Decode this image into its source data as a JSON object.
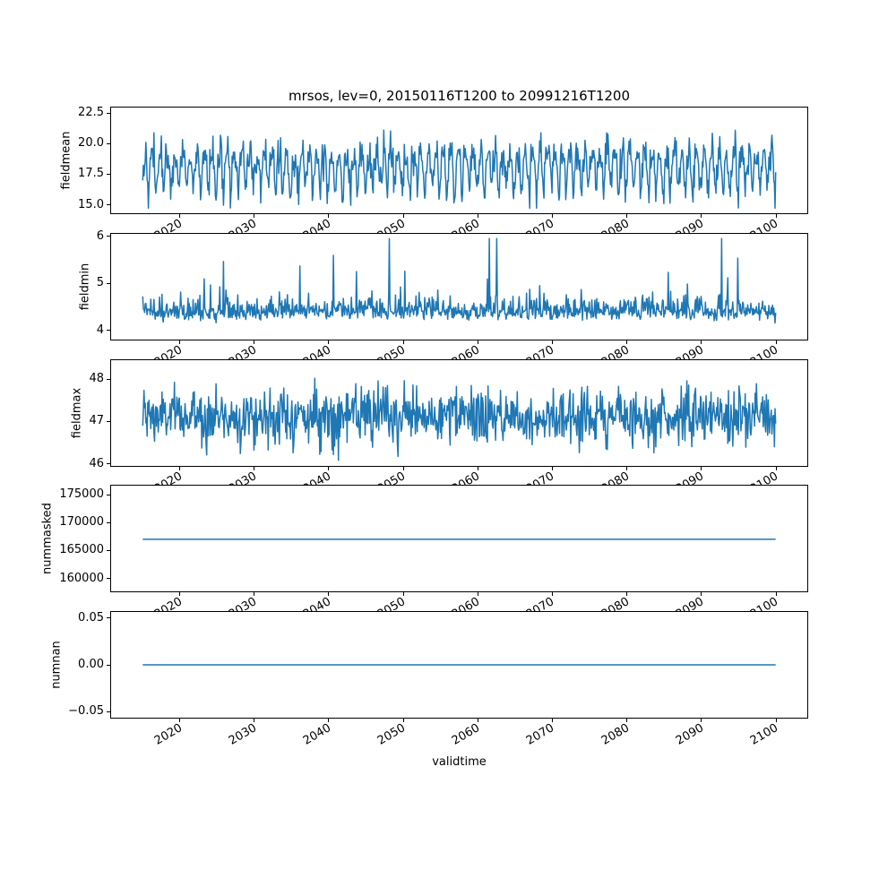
{
  "title": "mrsos, lev=0, 20150116T1200 to 20991216T1200",
  "xlabel": "validtime",
  "chart_data": {
    "type": "line",
    "title": "mrsos, lev=0, 20150116T1200 to 20991216T1200",
    "xlabel": "validtime",
    "grid": false,
    "legend": "none",
    "line_color": "#1f77b4",
    "spine_color": "#000000",
    "background_color": "#ffffff",
    "x": {
      "label": "validtime",
      "start_label": "20150116T1200",
      "end_label": "20991216T1200",
      "start": 2015.043,
      "end": 2099.958,
      "cadence": "monthly",
      "n": 1020,
      "ticks": [
        2020,
        2030,
        2040,
        2050,
        2060,
        2070,
        2080,
        2090,
        2100
      ],
      "tick_labels": [
        "2020",
        "2030",
        "2040",
        "2050",
        "2060",
        "2070",
        "2080",
        "2090",
        "2100"
      ],
      "tick_rotation_deg": 30,
      "lim": [
        2010.797,
        2104.204
      ]
    },
    "subplots": [
      {
        "ylabel": "fieldmean",
        "yticks": [
          "15.0",
          "17.5",
          "20.0",
          "22.5"
        ],
        "ytick_values": [
          15.0,
          17.5,
          20.0,
          22.5
        ],
        "ylim": [
          14.31,
          22.94
        ],
        "series": {
          "kind": "seasonal",
          "seed": 42,
          "base": 18.0,
          "amp": 1.4,
          "phase": -0.5,
          "amp2": 0.45,
          "phase2": 1.0,
          "noise": 0.75,
          "clip": [
            14.72,
            22.55
          ],
          "approx_mean": 18.1,
          "approx_min": 14.7,
          "approx_max": 22.5
        }
      },
      {
        "ylabel": "fieldmin",
        "yticks": [
          "4",
          "5",
          "6"
        ],
        "ytick_values": [
          4,
          5,
          6
        ],
        "ylim": [
          3.8,
          6.05
        ],
        "series": {
          "kind": "spiky",
          "seed": 7,
          "base": 4.28,
          "bump": 0.16,
          "jitter": 0.04,
          "spike_prob": 0.1,
          "spike_scale": 0.33,
          "spike_cap": 1.62,
          "clip": [
            3.93,
            5.95
          ],
          "approx_baseline": 4.35,
          "approx_min": 3.93,
          "approx_max": 5.95
        }
      },
      {
        "ylabel": "fieldmax",
        "yticks": [
          "46",
          "47",
          "48"
        ],
        "ytick_values": [
          46,
          47,
          48
        ],
        "ylim": [
          45.95,
          48.45
        ],
        "series": {
          "kind": "noise",
          "seed": 1234,
          "base": 47.12,
          "noise": 0.33,
          "clip": [
            46.07,
            48.3
          ],
          "approx_mean": 47.1,
          "approx_min": 46.1,
          "approx_max": 48.2
        }
      },
      {
        "ylabel": "nummasked",
        "yticks": [
          "160000",
          "165000",
          "170000",
          "175000"
        ],
        "ytick_values": [
          160000,
          165000,
          170000,
          175000
        ],
        "ylim": [
          157700,
          176600
        ],
        "series": {
          "kind": "constant",
          "value": 167000
        }
      },
      {
        "ylabel": "numnan",
        "yticks": [
          "−0.05",
          "0.00",
          "0.05"
        ],
        "ytick_values": [
          -0.05,
          0.0,
          0.05
        ],
        "ylim": [
          -0.0565,
          0.0565
        ],
        "series": {
          "kind": "constant",
          "value": 0
        }
      }
    ]
  }
}
